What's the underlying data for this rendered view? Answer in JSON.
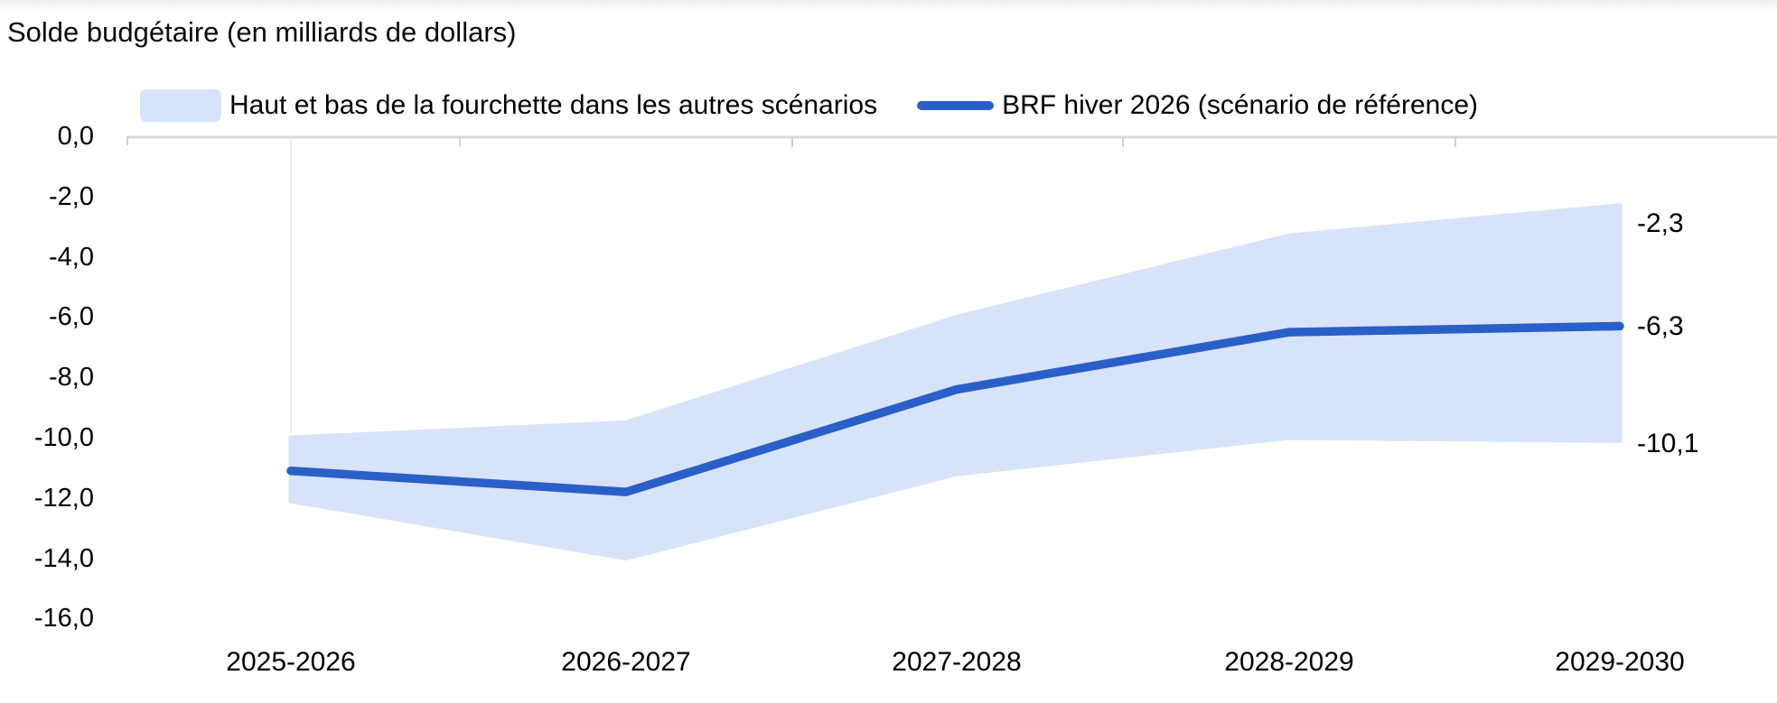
{
  "title": "Solde budgétaire (en milliards de dollars)",
  "legend": {
    "band_label": "Haut et bas de la fourchette dans les autres scénarios",
    "line_label": "BRF hiver 2026 (scénario de référence)"
  },
  "colors": {
    "line": "#2A5FC8",
    "band": "#D7E3F8",
    "axis": "#D9D9D9",
    "tick": "#CFCFCF",
    "faint_gridline": "#E9E9E9"
  },
  "annotations": {
    "band_top": "-2,3",
    "line_end": "-6,3",
    "band_bottom": "-10,1"
  },
  "chart_data": {
    "type": "area",
    "title": "Solde budgétaire (en milliards de dollars)",
    "categories": [
      "2025-2026",
      "2026-2027",
      "2027-2028",
      "2028-2029",
      "2029-2030"
    ],
    "series": [
      {
        "name": "BRF hiver 2026 (scénario de référence)",
        "role": "line",
        "values": [
          -11.1,
          -11.8,
          -8.4,
          -6.5,
          -6.3
        ]
      },
      {
        "name": "Haut et bas de la fourchette dans les autres scénarios (haut)",
        "role": "band-upper",
        "values": [
          -10.0,
          -9.5,
          -6.0,
          -3.3,
          -2.3
        ]
      },
      {
        "name": "Haut et bas de la fourchette dans les autres scénarios (bas)",
        "role": "band-lower",
        "values": [
          -12.1,
          -14.0,
          -11.2,
          -10.0,
          -10.1
        ]
      }
    ],
    "xlabel": "",
    "ylabel": "Solde budgétaire (en milliards de dollars)",
    "ylim": [
      -16,
      0
    ],
    "y_ticks": [
      "0,0",
      "-2,0",
      "-4,0",
      "-6,0",
      "-8,0",
      "-10,0",
      "-12,0",
      "-14,0",
      "-16,0"
    ],
    "grid": "off",
    "legend_position": "top",
    "end_labels": {
      "upper": "-2,3",
      "line": "-6,3",
      "lower": "-10,1"
    }
  }
}
